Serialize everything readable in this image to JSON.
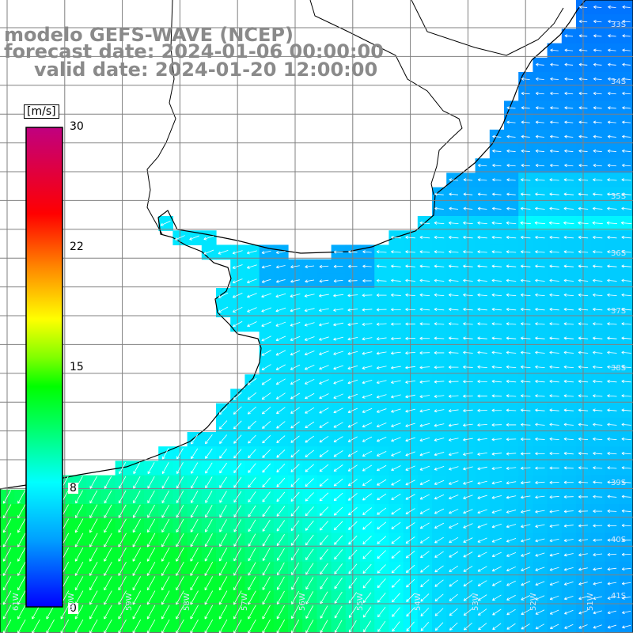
{
  "title": {
    "line1": "modelo GEFS-WAVE (NCEP)",
    "line2": "forecast date: 2024-01-06 00:00:00",
    "line3": "valid date: 2024-01-20 12:00:00"
  },
  "colorbar": {
    "unit": "[m/s]",
    "ticks": [
      "30",
      "22",
      "15",
      "8",
      "0"
    ],
    "tick_values": [
      30,
      22,
      15,
      8,
      0
    ],
    "colors": [
      "#0000ff",
      "#00b4ff",
      "#00ffff",
      "#00ff80",
      "#00ff00",
      "#80ff00",
      "#ffff00",
      "#ff8000",
      "#ff0000",
      "#c00080"
    ]
  },
  "map": {
    "lat_labels": [
      "33S",
      "34S",
      "35S",
      "36S",
      "37S",
      "38S",
      "39S",
      "40S",
      "41S"
    ],
    "lon_labels": [
      "61W",
      "60W",
      "59W",
      "58W",
      "57W",
      "56W",
      "55W",
      "54W",
      "53W",
      "52W",
      "51W"
    ],
    "land_color": "#ffffff",
    "grid_color": "#808080",
    "coast_color": "#000000",
    "arrow_color": "#ffffff"
  }
}
